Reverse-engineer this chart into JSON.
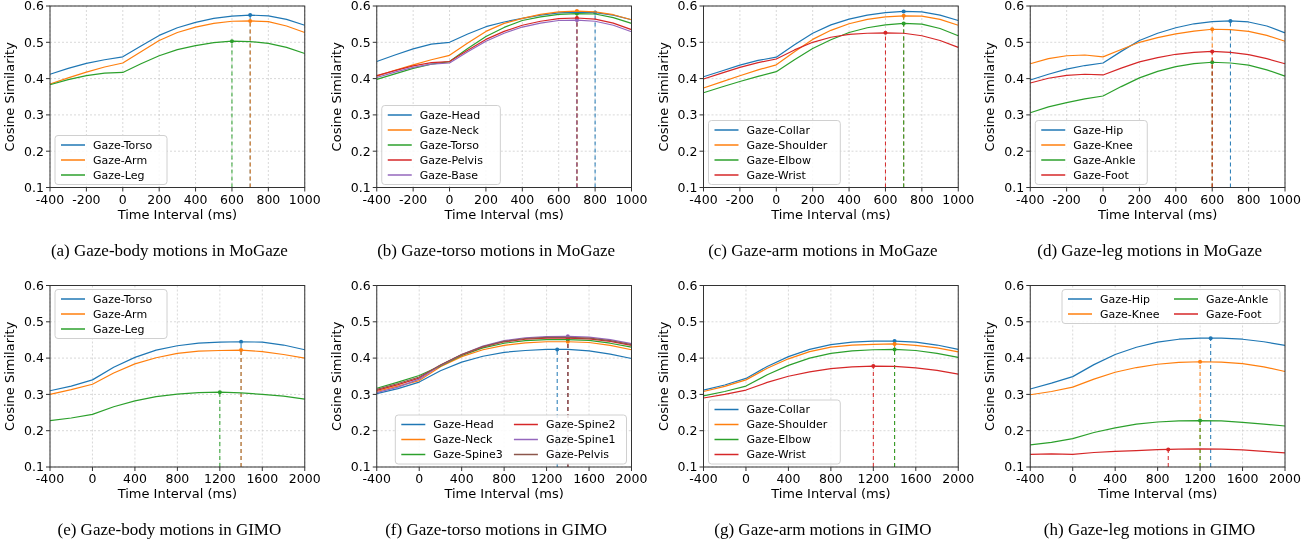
{
  "chart_data": [
    {
      "type": "line",
      "title": "(a) Gaze-body motions in MoGaze",
      "xlabel": "Time Interval (ms)",
      "ylabel": "Cosine Similarity",
      "x": [
        -400,
        -300,
        -200,
        -100,
        0,
        100,
        200,
        300,
        400,
        500,
        600,
        700,
        800,
        900,
        1000
      ],
      "xlim": [
        -400,
        1000
      ],
      "xticks": [
        -400,
        -200,
        0,
        200,
        400,
        600,
        800,
        1000
      ],
      "ylim": [
        0.1,
        0.6
      ],
      "yticks": [
        0.1,
        0.2,
        0.3,
        0.4,
        0.5,
        0.6
      ],
      "grid": true,
      "legend": "bottom left",
      "series": [
        {
          "name": "Gaze-Torso",
          "color": "#1f77b4",
          "values": [
            0.412,
            0.428,
            0.442,
            0.452,
            0.46,
            0.49,
            0.519,
            0.54,
            0.555,
            0.566,
            0.572,
            0.575,
            0.573,
            0.563,
            0.547
          ]
        },
        {
          "name": "Gaze-Arm",
          "color": "#ff7f0e",
          "values": [
            0.385,
            0.402,
            0.418,
            0.432,
            0.443,
            0.474,
            0.505,
            0.527,
            0.542,
            0.552,
            0.558,
            0.559,
            0.557,
            0.545,
            0.527
          ]
        },
        {
          "name": "Gaze-Leg",
          "color": "#2ca02c",
          "values": [
            0.383,
            0.397,
            0.408,
            0.415,
            0.417,
            0.441,
            0.463,
            0.48,
            0.491,
            0.499,
            0.503,
            0.502,
            0.497,
            0.486,
            0.469
          ]
        }
      ],
      "ref_lines": [
        {
          "axis": "x",
          "value": 700,
          "color": "#1f77b4",
          "line_style": "dashed"
        },
        {
          "axis": "x",
          "value": 700,
          "color": "#ff7f0e",
          "line_style": "dashed"
        },
        {
          "axis": "x",
          "value": 600,
          "color": "#2ca02c",
          "line_style": "dashed"
        }
      ]
    },
    {
      "type": "line",
      "title": "(b) Gaze-torso motions in MoGaze",
      "xlabel": "Time Interval (ms)",
      "ylabel": "Cosine Similarity",
      "x": [
        -400,
        -300,
        -200,
        -100,
        0,
        100,
        200,
        300,
        400,
        500,
        600,
        700,
        800,
        900,
        1000
      ],
      "xlim": [
        -400,
        1000
      ],
      "xticks": [
        -400,
        -200,
        0,
        200,
        400,
        600,
        800,
        1000
      ],
      "ylim": [
        0.1,
        0.6
      ],
      "yticks": [
        0.1,
        0.2,
        0.3,
        0.4,
        0.5,
        0.6
      ],
      "grid": true,
      "legend": "bottom left",
      "series": [
        {
          "name": "Gaze-Head",
          "color": "#1f77b4",
          "values": [
            0.447,
            0.465,
            0.482,
            0.495,
            0.5,
            0.523,
            0.543,
            0.556,
            0.566,
            0.575,
            0.581,
            0.583,
            0.582,
            0.575,
            0.562
          ]
        },
        {
          "name": "Gaze-Neck",
          "color": "#ff7f0e",
          "values": [
            0.407,
            0.423,
            0.438,
            0.452,
            0.464,
            0.498,
            0.53,
            0.552,
            0.566,
            0.577,
            0.584,
            0.586,
            0.584,
            0.576,
            0.562
          ]
        },
        {
          "name": "Gaze-Torso",
          "color": "#2ca02c",
          "values": [
            0.398,
            0.413,
            0.428,
            0.44,
            0.447,
            0.483,
            0.516,
            0.541,
            0.56,
            0.57,
            0.577,
            0.579,
            0.578,
            0.568,
            0.552
          ]
        },
        {
          "name": "Gaze-Pelvis",
          "color": "#d62728",
          "values": [
            0.408,
            0.422,
            0.435,
            0.444,
            0.447,
            0.478,
            0.508,
            0.53,
            0.547,
            0.558,
            0.565,
            0.567,
            0.564,
            0.553,
            0.535
          ]
        },
        {
          "name": "Gaze-Base",
          "color": "#9467bd",
          "values": [
            0.403,
            0.418,
            0.431,
            0.44,
            0.443,
            0.474,
            0.503,
            0.525,
            0.542,
            0.553,
            0.56,
            0.561,
            0.558,
            0.547,
            0.529
          ]
        }
      ],
      "ref_lines": [
        {
          "axis": "x",
          "value": 800,
          "color": "#1f77b4",
          "line_style": "dashed"
        },
        {
          "axis": "x",
          "value": 700,
          "color": "#ff7f0e",
          "line_style": "dashed"
        },
        {
          "axis": "x",
          "value": 700,
          "color": "#2ca02c",
          "line_style": "dashed"
        },
        {
          "axis": "x",
          "value": 700,
          "color": "#d62728",
          "line_style": "dashed"
        },
        {
          "axis": "x",
          "value": 700,
          "color": "#9467bd",
          "line_style": "dashed"
        }
      ]
    },
    {
      "type": "line",
      "title": "(c) Gaze-arm motions in MoGaze",
      "xlabel": "Time Interval (ms)",
      "ylabel": "Cosine Similarity",
      "x": [
        -400,
        -300,
        -200,
        -100,
        0,
        100,
        200,
        300,
        400,
        500,
        600,
        700,
        800,
        900,
        1000
      ],
      "xlim": [
        -400,
        1000
      ],
      "xticks": [
        -400,
        -200,
        0,
        200,
        400,
        600,
        800,
        1000
      ],
      "ylim": [
        0.1,
        0.6
      ],
      "yticks": [
        0.1,
        0.2,
        0.3,
        0.4,
        0.5,
        0.6
      ],
      "grid": true,
      "legend": "bottom left",
      "series": [
        {
          "name": "Gaze-Collar",
          "color": "#1f77b4",
          "values": [
            0.405,
            0.421,
            0.437,
            0.45,
            0.459,
            0.493,
            0.525,
            0.548,
            0.564,
            0.575,
            0.582,
            0.585,
            0.584,
            0.575,
            0.56
          ]
        },
        {
          "name": "Gaze-Shoulder",
          "color": "#ff7f0e",
          "values": [
            0.374,
            0.391,
            0.408,
            0.424,
            0.438,
            0.474,
            0.508,
            0.533,
            0.551,
            0.563,
            0.57,
            0.573,
            0.572,
            0.563,
            0.547
          ]
        },
        {
          "name": "Gaze-Elbow",
          "color": "#2ca02c",
          "values": [
            0.361,
            0.377,
            0.392,
            0.406,
            0.419,
            0.452,
            0.483,
            0.507,
            0.527,
            0.54,
            0.548,
            0.552,
            0.55,
            0.538,
            0.518
          ]
        },
        {
          "name": "Gaze-Wrist",
          "color": "#d62728",
          "values": [
            0.399,
            0.415,
            0.431,
            0.444,
            0.454,
            0.479,
            0.5,
            0.514,
            0.522,
            0.525,
            0.526,
            0.525,
            0.518,
            0.505,
            0.486
          ]
        }
      ],
      "ref_lines": [
        {
          "axis": "x",
          "value": 700,
          "color": "#1f77b4",
          "line_style": "dashed"
        },
        {
          "axis": "x",
          "value": 700,
          "color": "#ff7f0e",
          "line_style": "dashed"
        },
        {
          "axis": "x",
          "value": 700,
          "color": "#2ca02c",
          "line_style": "dashed"
        },
        {
          "axis": "x",
          "value": 600,
          "color": "#d62728",
          "line_style": "dashed"
        }
      ]
    },
    {
      "type": "line",
      "title": "(d) Gaze-leg motions in MoGaze",
      "xlabel": "Time Interval (ms)",
      "ylabel": "Cosine Similarity",
      "x": [
        -400,
        -300,
        -200,
        -100,
        0,
        100,
        200,
        300,
        400,
        500,
        600,
        700,
        800,
        900,
        1000
      ],
      "xlim": [
        -400,
        1000
      ],
      "xticks": [
        -400,
        -200,
        0,
        200,
        400,
        600,
        800,
        1000
      ],
      "ylim": [
        0.1,
        0.6
      ],
      "yticks": [
        0.1,
        0.2,
        0.3,
        0.4,
        0.5,
        0.6
      ],
      "grid": true,
      "legend": "bottom left",
      "series": [
        {
          "name": "Gaze-Hip",
          "color": "#1f77b4",
          "values": [
            0.396,
            0.412,
            0.426,
            0.436,
            0.443,
            0.475,
            0.505,
            0.525,
            0.54,
            0.551,
            0.557,
            0.559,
            0.556,
            0.545,
            0.526
          ]
        },
        {
          "name": "Gaze-Knee",
          "color": "#ff7f0e",
          "values": [
            0.441,
            0.455,
            0.463,
            0.465,
            0.46,
            0.48,
            0.5,
            0.513,
            0.523,
            0.531,
            0.536,
            0.535,
            0.53,
            0.519,
            0.503
          ]
        },
        {
          "name": "Gaze-Ankle",
          "color": "#2ca02c",
          "values": [
            0.306,
            0.322,
            0.334,
            0.344,
            0.352,
            0.378,
            0.402,
            0.42,
            0.433,
            0.441,
            0.445,
            0.443,
            0.437,
            0.424,
            0.407
          ]
        },
        {
          "name": "Gaze-Foot",
          "color": "#d62728",
          "values": [
            0.388,
            0.401,
            0.409,
            0.412,
            0.41,
            0.429,
            0.446,
            0.458,
            0.467,
            0.472,
            0.475,
            0.472,
            0.466,
            0.455,
            0.441
          ]
        }
      ],
      "ref_lines": [
        {
          "axis": "x",
          "value": 700,
          "color": "#1f77b4",
          "line_style": "dashed"
        },
        {
          "axis": "x",
          "value": 600,
          "color": "#ff7f0e",
          "line_style": "dashed"
        },
        {
          "axis": "x",
          "value": 600,
          "color": "#2ca02c",
          "line_style": "dashed"
        },
        {
          "axis": "x",
          "value": 600,
          "color": "#d62728",
          "line_style": "dashed"
        }
      ]
    },
    {
      "type": "line",
      "title": "(e) Gaze-body motions in GIMO",
      "xlabel": "Time Interval (ms)",
      "ylabel": "Cosine Similarity",
      "x": [
        -400,
        -200,
        0,
        200,
        400,
        600,
        800,
        1000,
        1200,
        1400,
        1600,
        1800,
        2000
      ],
      "xlim": [
        -400,
        2000
      ],
      "xticks": [
        -400,
        0,
        400,
        800,
        1200,
        1600,
        2000
      ],
      "ylim": [
        0.1,
        0.6
      ],
      "yticks": [
        0.1,
        0.2,
        0.3,
        0.4,
        0.5,
        0.6
      ],
      "grid": true,
      "legend": "top left",
      "series": [
        {
          "name": "Gaze-Torso",
          "color": "#1f77b4",
          "values": [
            0.31,
            0.323,
            0.34,
            0.375,
            0.402,
            0.422,
            0.434,
            0.441,
            0.444,
            0.445,
            0.444,
            0.436,
            0.423
          ]
        },
        {
          "name": "Gaze-Arm",
          "color": "#ff7f0e",
          "values": [
            0.3,
            0.313,
            0.328,
            0.359,
            0.384,
            0.401,
            0.413,
            0.419,
            0.421,
            0.422,
            0.418,
            0.41,
            0.4
          ]
        },
        {
          "name": "Gaze-Leg",
          "color": "#2ca02c",
          "values": [
            0.228,
            0.235,
            0.245,
            0.266,
            0.282,
            0.294,
            0.301,
            0.305,
            0.306,
            0.304,
            0.3,
            0.295,
            0.287
          ]
        }
      ],
      "ref_lines": [
        {
          "axis": "x",
          "value": 1400,
          "color": "#1f77b4",
          "line_style": "dashed"
        },
        {
          "axis": "x",
          "value": 1400,
          "color": "#ff7f0e",
          "line_style": "dashed"
        },
        {
          "axis": "x",
          "value": 1200,
          "color": "#2ca02c",
          "line_style": "dashed"
        }
      ]
    },
    {
      "type": "line",
      "title": "(f) Gaze-torso motions in GIMO",
      "xlabel": "Time Interval (ms)",
      "ylabel": "Cosine Similarity",
      "x": [
        -400,
        -200,
        0,
        200,
        400,
        600,
        800,
        1000,
        1200,
        1400,
        1600,
        1800,
        2000
      ],
      "xlim": [
        -400,
        2000
      ],
      "xticks": [
        -400,
        0,
        400,
        800,
        1200,
        1600,
        2000
      ],
      "ylim": [
        0.1,
        0.6
      ],
      "yticks": [
        0.1,
        0.2,
        0.3,
        0.4,
        0.5,
        0.6
      ],
      "grid": true,
      "legend": "bottom right",
      "series": [
        {
          "name": "Gaze-Head",
          "color": "#1f77b4",
          "values": [
            0.302,
            0.316,
            0.334,
            0.365,
            0.389,
            0.405,
            0.416,
            0.421,
            0.424,
            0.424,
            0.42,
            0.411,
            0.399
          ]
        },
        {
          "name": "Gaze-Neck",
          "color": "#ff7f0e",
          "values": [
            0.308,
            0.323,
            0.338,
            0.376,
            0.404,
            0.423,
            0.435,
            0.442,
            0.445,
            0.445,
            0.443,
            0.435,
            0.423
          ]
        },
        {
          "name": "Gaze-Spine3",
          "color": "#2ca02c",
          "values": [
            0.317,
            0.334,
            0.352,
            0.378,
            0.407,
            0.428,
            0.441,
            0.448,
            0.451,
            0.451,
            0.449,
            0.441,
            0.43
          ]
        },
        {
          "name": "Gaze-Spine2",
          "color": "#d62728",
          "values": [
            0.311,
            0.327,
            0.345,
            0.38,
            0.409,
            0.431,
            0.445,
            0.452,
            0.455,
            0.455,
            0.453,
            0.446,
            0.435
          ]
        },
        {
          "name": "Gaze-Spine1",
          "color": "#9467bd",
          "values": [
            0.305,
            0.32,
            0.342,
            0.38,
            0.41,
            0.433,
            0.448,
            0.456,
            0.459,
            0.46,
            0.458,
            0.451,
            0.44
          ]
        },
        {
          "name": "Gaze-Pelvis",
          "color": "#8c564b",
          "values": [
            0.314,
            0.33,
            0.348,
            0.381,
            0.41,
            0.432,
            0.446,
            0.454,
            0.457,
            0.457,
            0.455,
            0.448,
            0.437
          ]
        }
      ],
      "ref_lines": [
        {
          "axis": "x",
          "value": 1300,
          "color": "#1f77b4",
          "line_style": "dashed"
        },
        {
          "axis": "x",
          "value": 1400,
          "color": "#ff7f0e",
          "line_style": "dashed"
        },
        {
          "axis": "x",
          "value": 1400,
          "color": "#2ca02c",
          "line_style": "dashed"
        },
        {
          "axis": "x",
          "value": 1400,
          "color": "#d62728",
          "line_style": "dashed"
        },
        {
          "axis": "x",
          "value": 1400,
          "color": "#9467bd",
          "line_style": "dashed"
        },
        {
          "axis": "x",
          "value": 1400,
          "color": "#8c564b",
          "line_style": "dashed"
        }
      ]
    },
    {
      "type": "line",
      "title": "(g) Gaze-arm motions in GIMO",
      "xlabel": "Time Interval (ms)",
      "ylabel": "Cosine Similarity",
      "x": [
        -400,
        -200,
        0,
        200,
        400,
        600,
        800,
        1000,
        1200,
        1400,
        1600,
        1800,
        2000
      ],
      "xlim": [
        -400,
        2000
      ],
      "xticks": [
        -400,
        0,
        400,
        800,
        1200,
        1600,
        2000
      ],
      "ylim": [
        0.1,
        0.6
      ],
      "yticks": [
        0.1,
        0.2,
        0.3,
        0.4,
        0.5,
        0.6
      ],
      "grid": true,
      "legend": "bottom left",
      "series": [
        {
          "name": "Gaze-Collar",
          "color": "#1f77b4",
          "values": [
            0.312,
            0.326,
            0.344,
            0.377,
            0.404,
            0.424,
            0.437,
            0.444,
            0.447,
            0.447,
            0.444,
            0.436,
            0.424
          ]
        },
        {
          "name": "Gaze-Shoulder",
          "color": "#ff7f0e",
          "values": [
            0.308,
            0.322,
            0.34,
            0.372,
            0.398,
            0.418,
            0.43,
            0.436,
            0.438,
            0.439,
            0.435,
            0.428,
            0.417
          ]
        },
        {
          "name": "Gaze-Elbow",
          "color": "#2ca02c",
          "values": [
            0.296,
            0.308,
            0.323,
            0.354,
            0.38,
            0.4,
            0.413,
            0.42,
            0.423,
            0.424,
            0.421,
            0.413,
            0.402
          ]
        },
        {
          "name": "Gaze-Wrist",
          "color": "#d62728",
          "values": [
            0.29,
            0.3,
            0.312,
            0.333,
            0.35,
            0.362,
            0.371,
            0.376,
            0.378,
            0.377,
            0.373,
            0.366,
            0.356
          ]
        }
      ],
      "ref_lines": [
        {
          "axis": "x",
          "value": 1400,
          "color": "#1f77b4",
          "line_style": "dashed"
        },
        {
          "axis": "x",
          "value": 1400,
          "color": "#ff7f0e",
          "line_style": "dashed"
        },
        {
          "axis": "x",
          "value": 1400,
          "color": "#2ca02c",
          "line_style": "dashed"
        },
        {
          "axis": "x",
          "value": 1200,
          "color": "#d62728",
          "line_style": "dashed"
        }
      ]
    },
    {
      "type": "line",
      "title": "(h) Gaze-leg motions in GIMO",
      "xlabel": "Time Interval (ms)",
      "ylabel": "Cosine Similarity",
      "x": [
        -400,
        -200,
        0,
        200,
        400,
        600,
        800,
        1000,
        1200,
        1400,
        1600,
        1800,
        2000
      ],
      "xlim": [
        -400,
        2000
      ],
      "xticks": [
        -400,
        0,
        400,
        800,
        1200,
        1600,
        2000
      ],
      "ylim": [
        0.1,
        0.6
      ],
      "yticks": [
        0.1,
        0.2,
        0.3,
        0.4,
        0.5,
        0.6
      ],
      "grid": true,
      "legend": "top right",
      "series": [
        {
          "name": "Gaze-Hip",
          "color": "#1f77b4",
          "values": [
            0.315,
            0.331,
            0.349,
            0.382,
            0.41,
            0.43,
            0.444,
            0.452,
            0.455,
            0.455,
            0.452,
            0.445,
            0.435
          ]
        },
        {
          "name": "Gaze-Knee",
          "color": "#ff7f0e",
          "values": [
            0.299,
            0.308,
            0.32,
            0.342,
            0.361,
            0.374,
            0.383,
            0.388,
            0.39,
            0.389,
            0.385,
            0.376,
            0.363
          ]
        },
        {
          "name": "Gaze-Ankle",
          "color": "#2ca02c",
          "values": [
            0.161,
            0.168,
            0.178,
            0.195,
            0.208,
            0.218,
            0.224,
            0.227,
            0.228,
            0.227,
            0.223,
            0.218,
            0.213
          ]
        },
        {
          "name": "Gaze-Foot",
          "color": "#d62728",
          "values": [
            0.135,
            0.136,
            0.135,
            0.14,
            0.143,
            0.145,
            0.148,
            0.149,
            0.15,
            0.149,
            0.147,
            0.143,
            0.139
          ]
        }
      ],
      "ref_lines": [
        {
          "axis": "x",
          "value": 1300,
          "color": "#1f77b4",
          "line_style": "dashed"
        },
        {
          "axis": "x",
          "value": 1200,
          "color": "#ff7f0e",
          "line_style": "dashed"
        },
        {
          "axis": "x",
          "value": 1200,
          "color": "#2ca02c",
          "line_style": "dashed"
        },
        {
          "axis": "x",
          "value": 900,
          "color": "#d62728",
          "line_style": "dashed"
        }
      ]
    }
  ]
}
